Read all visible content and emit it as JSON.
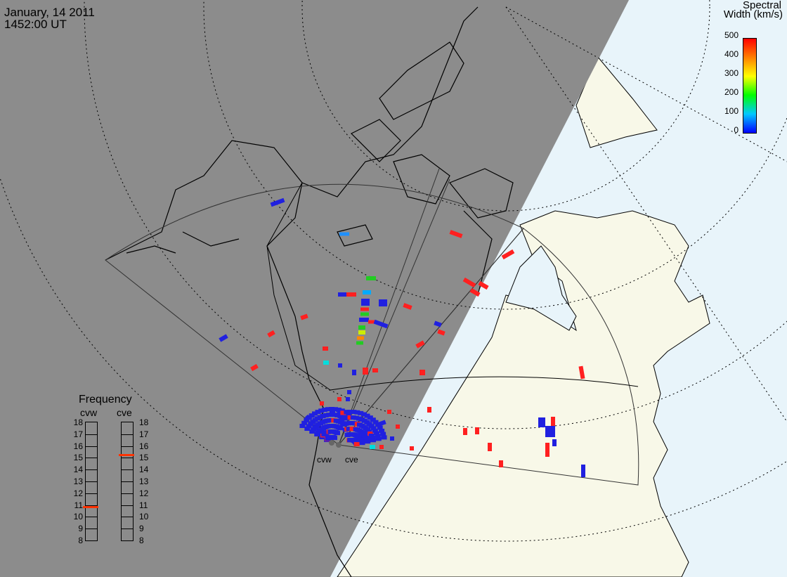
{
  "header": {
    "date": "January, 14 2011",
    "time": "1452:00 UT"
  },
  "colorbar": {
    "title_line1": "Spectral",
    "title_line2": "Width (km/s)",
    "ticks": [
      "500",
      "400",
      "300",
      "200",
      "100",
      "0"
    ],
    "range": [
      0,
      500
    ],
    "stops": [
      "#0000ff",
      "#00c8ff",
      "#00ff00",
      "#ffff00",
      "#ff8000",
      "#ff0000"
    ]
  },
  "frequency": {
    "title": "Frequency",
    "radars": [
      "cvw",
      "cve"
    ],
    "scale": [
      "18",
      "17",
      "16",
      "15",
      "14",
      "13",
      "12",
      "11",
      "10",
      "9",
      "8"
    ],
    "cvw_value": 10.8,
    "cve_value": 15.2,
    "marker_color": "#ff3300"
  },
  "map": {
    "radar_labels": [
      "cvw",
      "cve"
    ],
    "night_color": "#8c8c8c",
    "day_land_color": "#f8f8e8",
    "ocean_color": "#e8f4fa"
  }
}
